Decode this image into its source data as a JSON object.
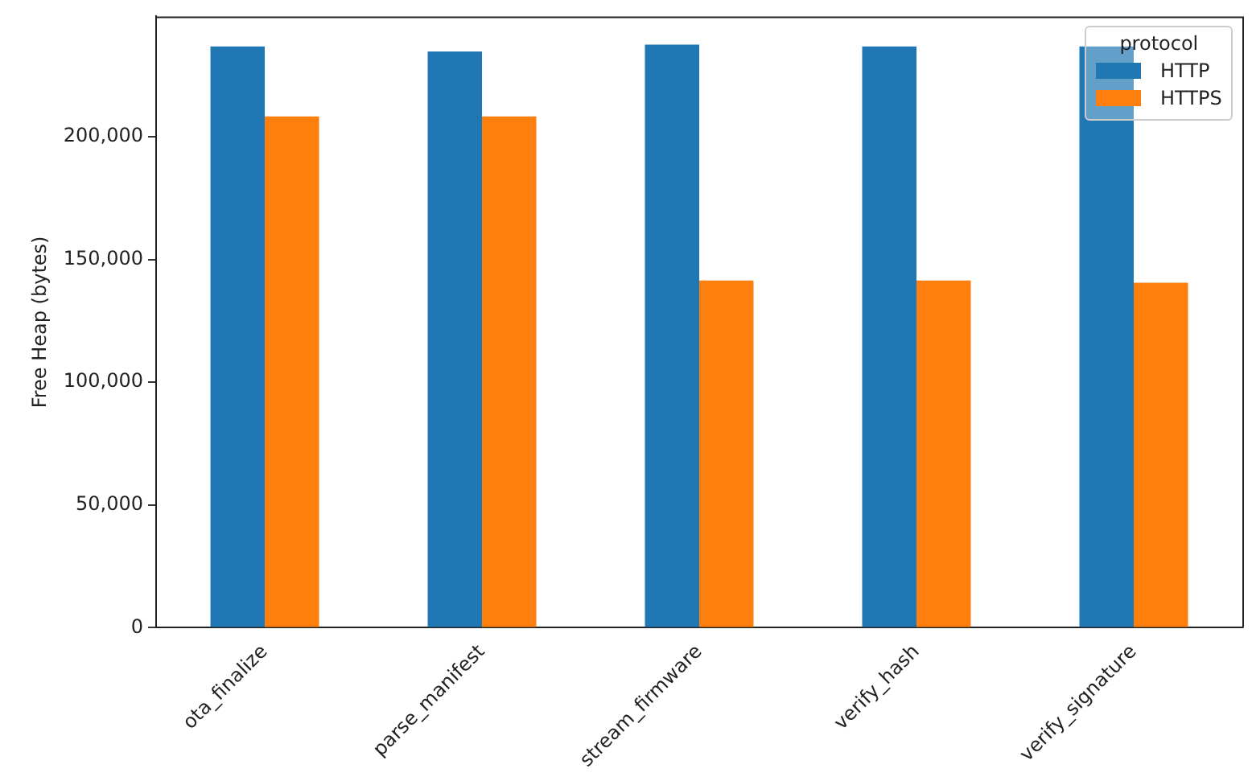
{
  "chart_data": {
    "type": "bar",
    "ylabel": "Free Heap (bytes)",
    "legend_title": "protocol",
    "legend": "top right",
    "grid": false,
    "categories": [
      "ota_finalize",
      "parse_manifest",
      "stream_firmware",
      "verify_hash",
      "verify_signature"
    ],
    "series": [
      {
        "name": "HTTP",
        "color": "#1f77b4",
        "values": [
          236800,
          234700,
          237500,
          236800,
          236800
        ]
      },
      {
        "name": "HTTPS",
        "color": "#ff7f0e",
        "values": [
          208300,
          208300,
          141400,
          141400,
          140500
        ]
      }
    ],
    "ylim": [
      0,
      249000
    ],
    "yticks": [
      0,
      {
        "value": 50000,
        "label": "50,000"
      },
      {
        "value": 100000,
        "label": "100,000"
      },
      {
        "value": 150000,
        "label": "150,000"
      },
      {
        "value": 200000,
        "label": "200,000"
      }
    ]
  }
}
